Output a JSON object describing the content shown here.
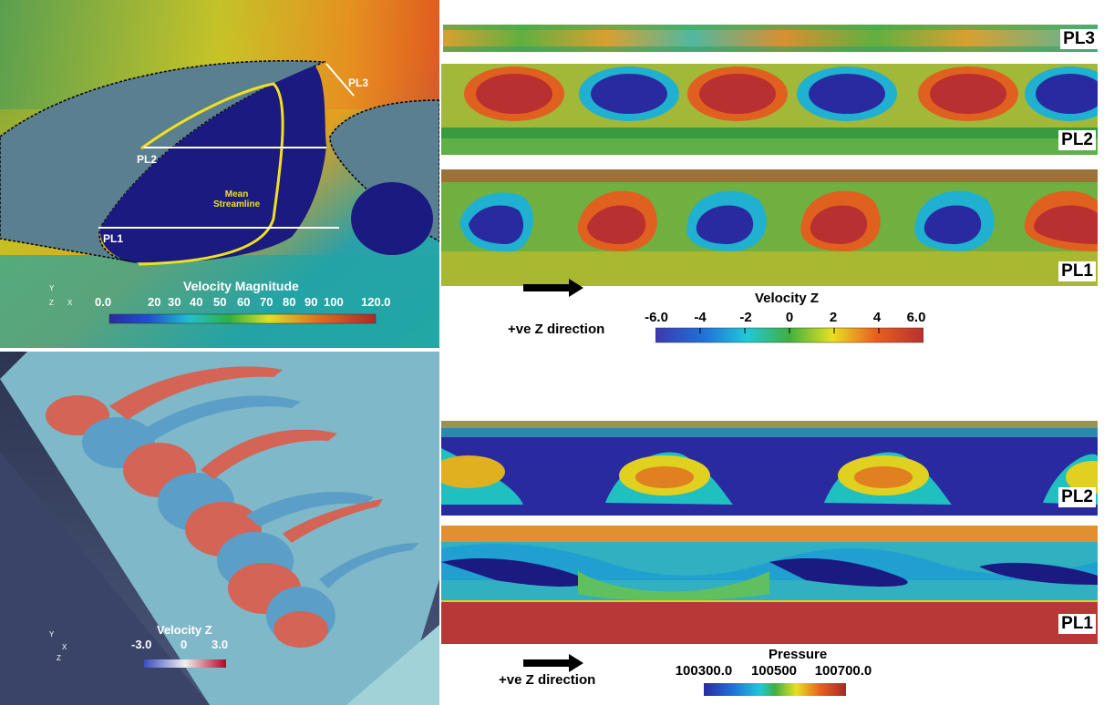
{
  "top_left": {
    "colorbar_title": "Velocity Magnitude",
    "colorbar_ticks": [
      "0.0",
      "20",
      "30",
      "40",
      "50",
      "60",
      "70",
      "80",
      "90",
      "100",
      "120.0"
    ],
    "streamline_label_line1": "Mean",
    "streamline_label_line2": "Streamline",
    "plane_labels": {
      "pl1": "PL1",
      "pl2": "PL2",
      "pl3": "PL3"
    },
    "axes": {
      "y": "Y",
      "z": "Z",
      "x": "X"
    }
  },
  "top_right": {
    "strip_labels": [
      "PL3",
      "PL2",
      "PL1"
    ],
    "arrow_label": "+ve Z direction",
    "colorbar_title": "Velocity Z",
    "colorbar_ticks": [
      "-6.0",
      "-4",
      "-2",
      "0",
      "2",
      "4",
      "6.0"
    ]
  },
  "bottom_left": {
    "colorbar_title": "Velocity Z",
    "colorbar_ticks": [
      "-3.0",
      "0",
      "3.0"
    ],
    "axes": {
      "y": "Y",
      "z": "Z",
      "x": "X"
    }
  },
  "bottom_right": {
    "strip_labels": [
      "PL2",
      "PL1"
    ],
    "arrow_label": "+ve Z direction",
    "colorbar_title": "Pressure",
    "colorbar_ticks": [
      "100300.0",
      "100500",
      "100700.0"
    ]
  },
  "colors": {
    "jet_low": "#2a2aa0",
    "jet_high": "#b83030",
    "background_panel_bl": "#3e4a6c"
  }
}
